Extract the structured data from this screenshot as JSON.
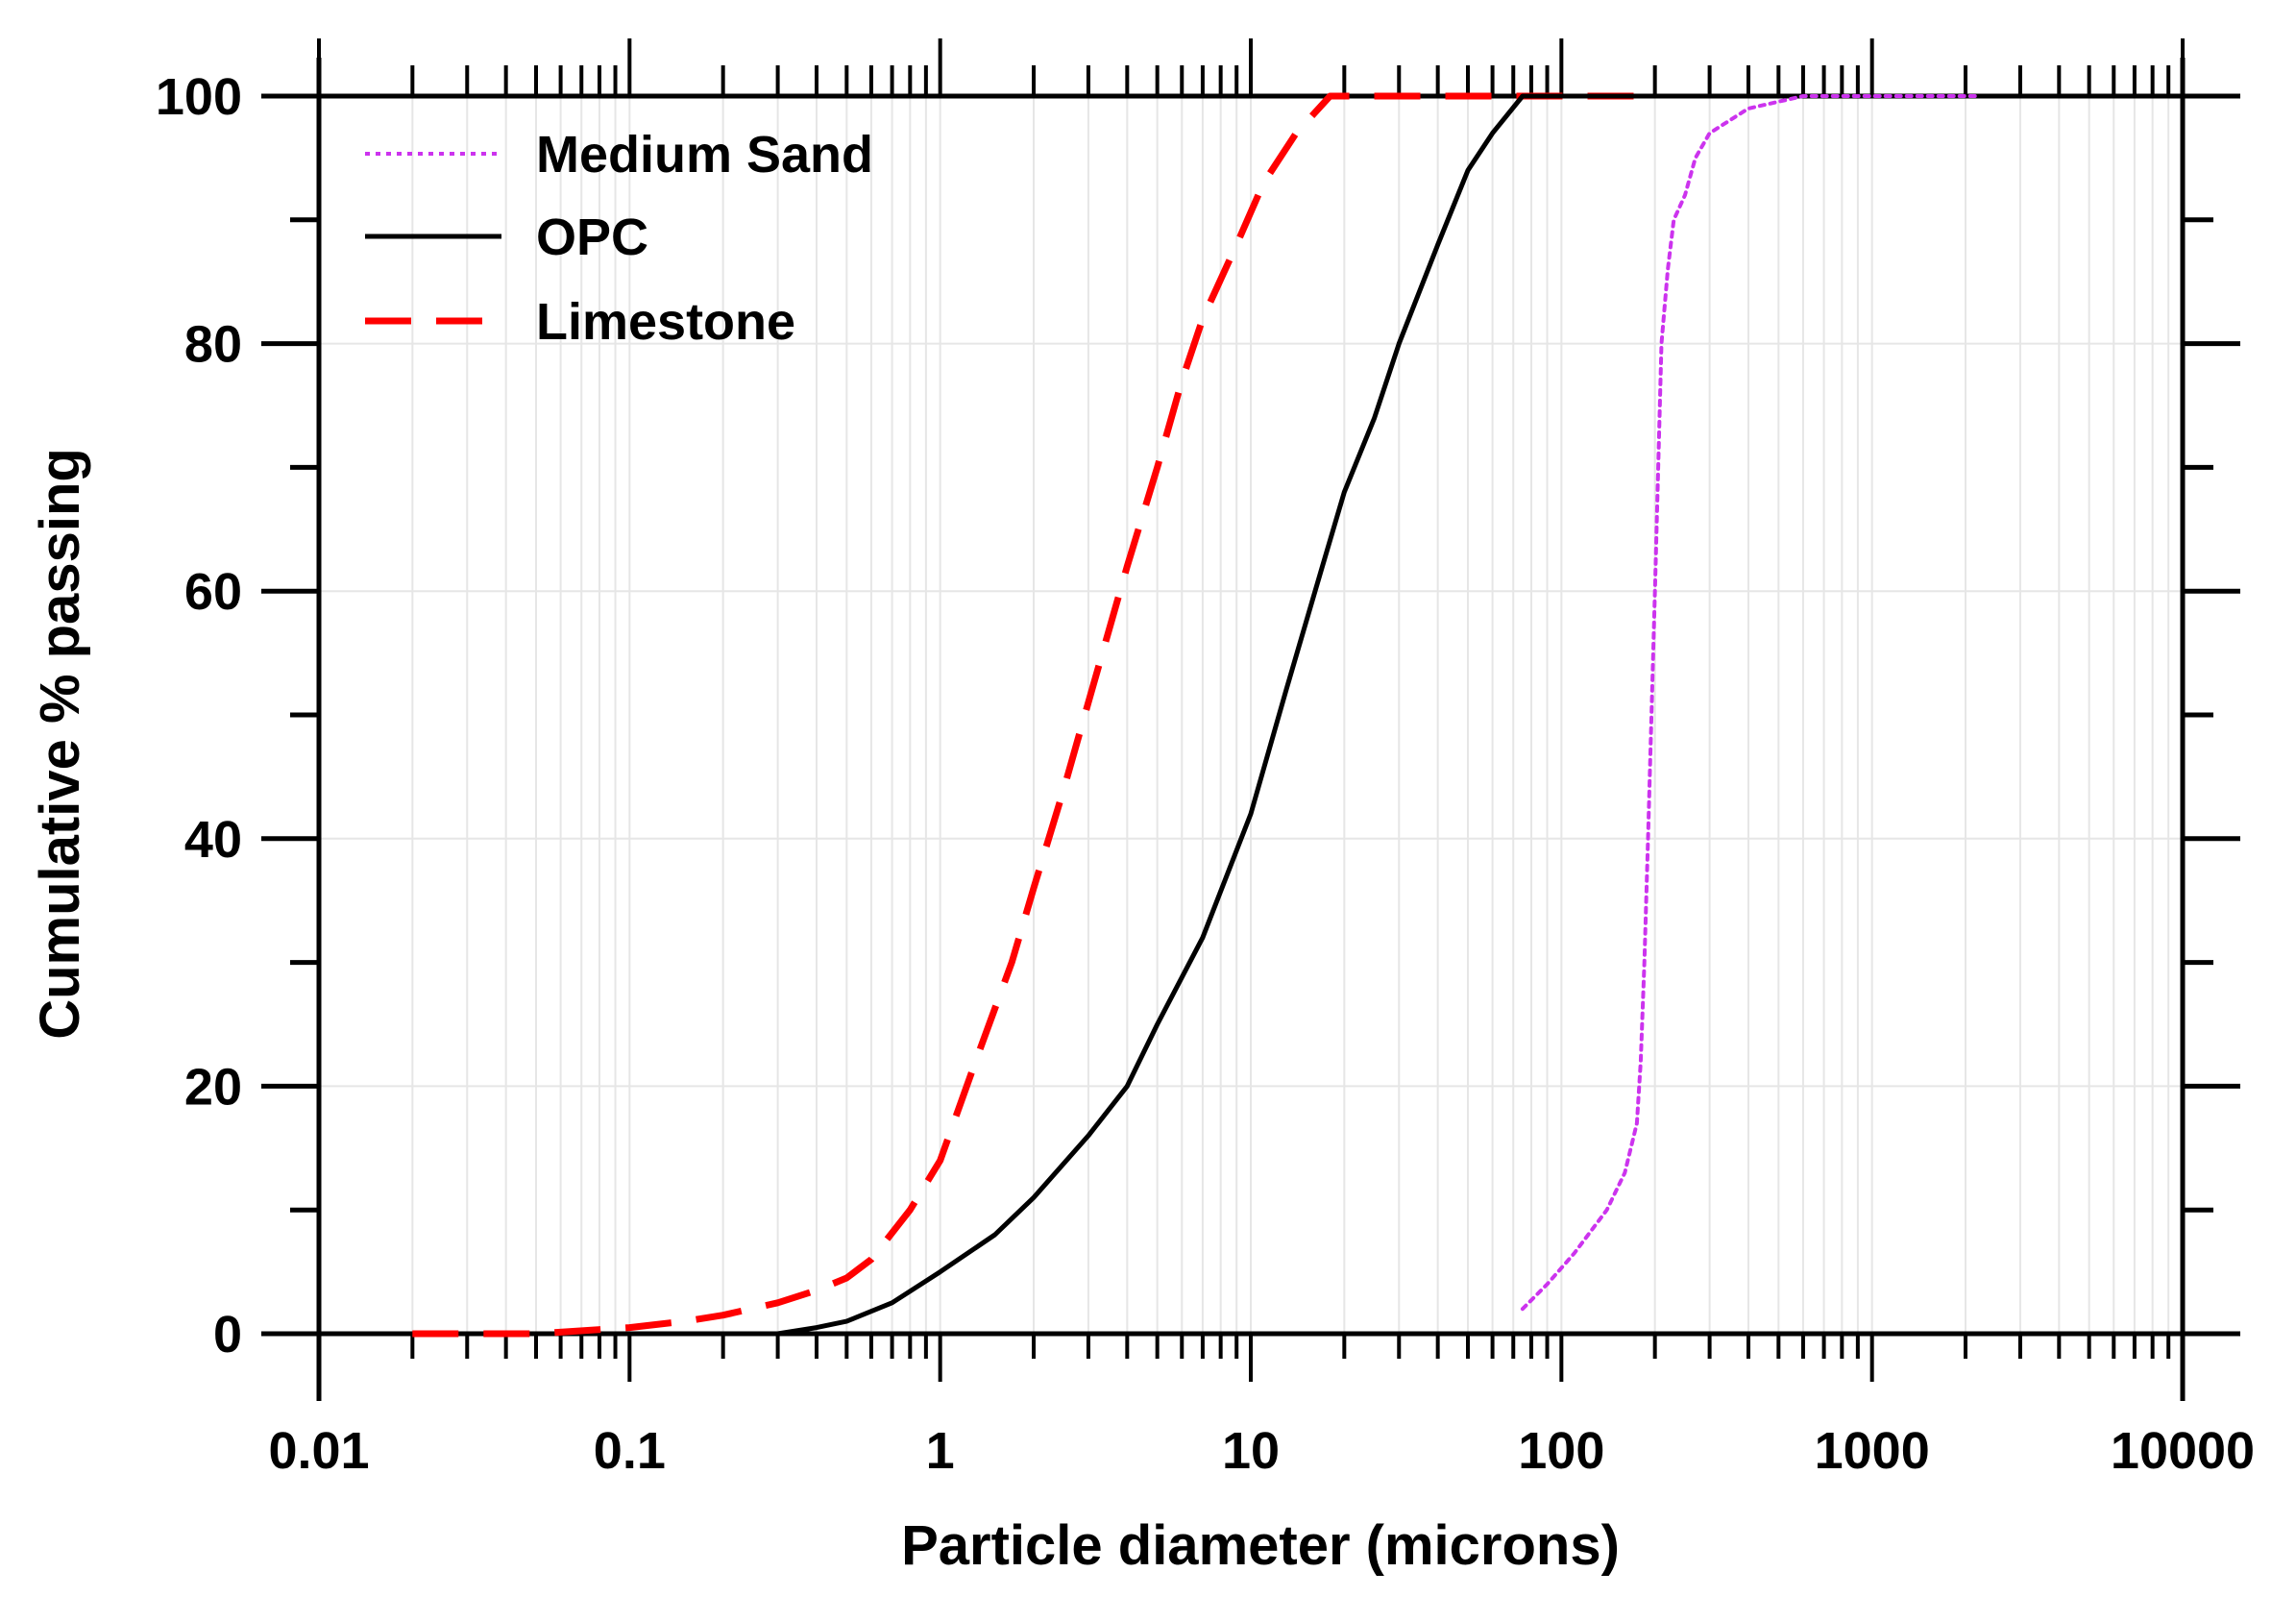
{
  "chart_data": {
    "type": "line",
    "title": "",
    "xlabel": "Particle diameter (microns)",
    "ylabel": "Cumulative % passing",
    "xscale": "log",
    "xlim": [
      0.01,
      10000
    ],
    "ylim": [
      0,
      100
    ],
    "grid": true,
    "legend_position": "top-left",
    "x_tick_labels": [
      "0.01",
      "0.1",
      "1",
      "10",
      "100",
      "1000",
      "10000"
    ],
    "y_tick_labels": [
      "0",
      "20",
      "40",
      "60",
      "80",
      "100"
    ],
    "x_tick_values": [
      0.01,
      0.1,
      1,
      10,
      100,
      1000,
      10000
    ],
    "y_tick_values": [
      0,
      20,
      40,
      60,
      80,
      100
    ],
    "series": [
      {
        "name": "Medium Sand",
        "color": "#cc33ee",
        "style": "dotted",
        "points": [
          [
            75,
            2
          ],
          [
            90,
            4
          ],
          [
            110,
            6.5
          ],
          [
            140,
            10
          ],
          [
            160,
            13
          ],
          [
            175,
            17
          ],
          [
            180,
            22
          ],
          [
            185,
            30
          ],
          [
            190,
            40
          ],
          [
            195,
            50
          ],
          [
            200,
            60
          ],
          [
            205,
            70
          ],
          [
            210,
            80
          ],
          [
            220,
            86
          ],
          [
            230,
            90
          ],
          [
            250,
            92
          ],
          [
            270,
            95
          ],
          [
            300,
            97
          ],
          [
            400,
            99
          ],
          [
            600,
            100
          ],
          [
            1000,
            100
          ],
          [
            2200,
            100
          ]
        ]
      },
      {
        "name": "OPC",
        "color": "#000000",
        "style": "solid",
        "points": [
          [
            0.3,
            0
          ],
          [
            0.4,
            0.5
          ],
          [
            0.5,
            1
          ],
          [
            0.7,
            2.5
          ],
          [
            1,
            5
          ],
          [
            1.5,
            8
          ],
          [
            2,
            11
          ],
          [
            3,
            16
          ],
          [
            4,
            20
          ],
          [
            5,
            25
          ],
          [
            7,
            32
          ],
          [
            10,
            42
          ],
          [
            13,
            52
          ],
          [
            17,
            62
          ],
          [
            20,
            68
          ],
          [
            25,
            74
          ],
          [
            30,
            80
          ],
          [
            40,
            88
          ],
          [
            50,
            94
          ],
          [
            60,
            97
          ],
          [
            75,
            100
          ],
          [
            100,
            100
          ],
          [
            200,
            100
          ]
        ]
      },
      {
        "name": "Limestone",
        "color": "#ff0000",
        "style": "dashed",
        "points": [
          [
            0.02,
            0
          ],
          [
            0.05,
            0
          ],
          [
            0.1,
            0.5
          ],
          [
            0.15,
            1
          ],
          [
            0.2,
            1.5
          ],
          [
            0.3,
            2.5
          ],
          [
            0.4,
            3.5
          ],
          [
            0.5,
            4.5
          ],
          [
            0.6,
            6
          ],
          [
            0.8,
            10
          ],
          [
            1,
            14
          ],
          [
            1.3,
            22
          ],
          [
            1.7,
            30
          ],
          [
            2,
            36
          ],
          [
            2.5,
            44
          ],
          [
            3,
            51
          ],
          [
            4,
            62
          ],
          [
            5,
            70
          ],
          [
            6,
            77
          ],
          [
            7,
            82
          ],
          [
            9,
            88
          ],
          [
            11,
            93
          ],
          [
            14,
            97
          ],
          [
            18,
            100
          ],
          [
            25,
            100
          ],
          [
            100,
            100
          ],
          [
            200,
            100
          ]
        ]
      }
    ]
  }
}
